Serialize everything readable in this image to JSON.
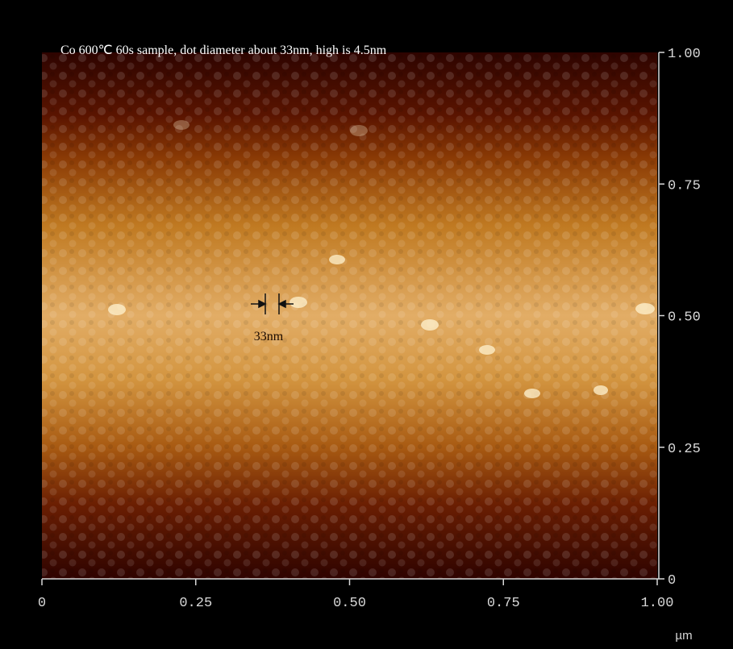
{
  "caption": "Co 600℃  60s sample, dot diameter about 33nm, high is 4.5nm",
  "annotation": "33nm",
  "unit": "µm",
  "xlim": [
    0,
    1
  ],
  "ylim": [
    0,
    1
  ],
  "xticks": [
    0,
    {
      "value": 0.25,
      "label": "0.25"
    },
    {
      "value": 0.5,
      "label": "0.50"
    },
    {
      "value": 0.75,
      "label": "0.75"
    },
    {
      "value": 1,
      "label": "1.00"
    }
  ],
  "yticks": [
    0,
    {
      "value": 0.25,
      "label": "0.25"
    },
    {
      "value": 0.5,
      "label": "0.50"
    },
    {
      "value": 0.75,
      "label": "0.75"
    },
    {
      "value": 1,
      "label": "1.00"
    }
  ]
}
